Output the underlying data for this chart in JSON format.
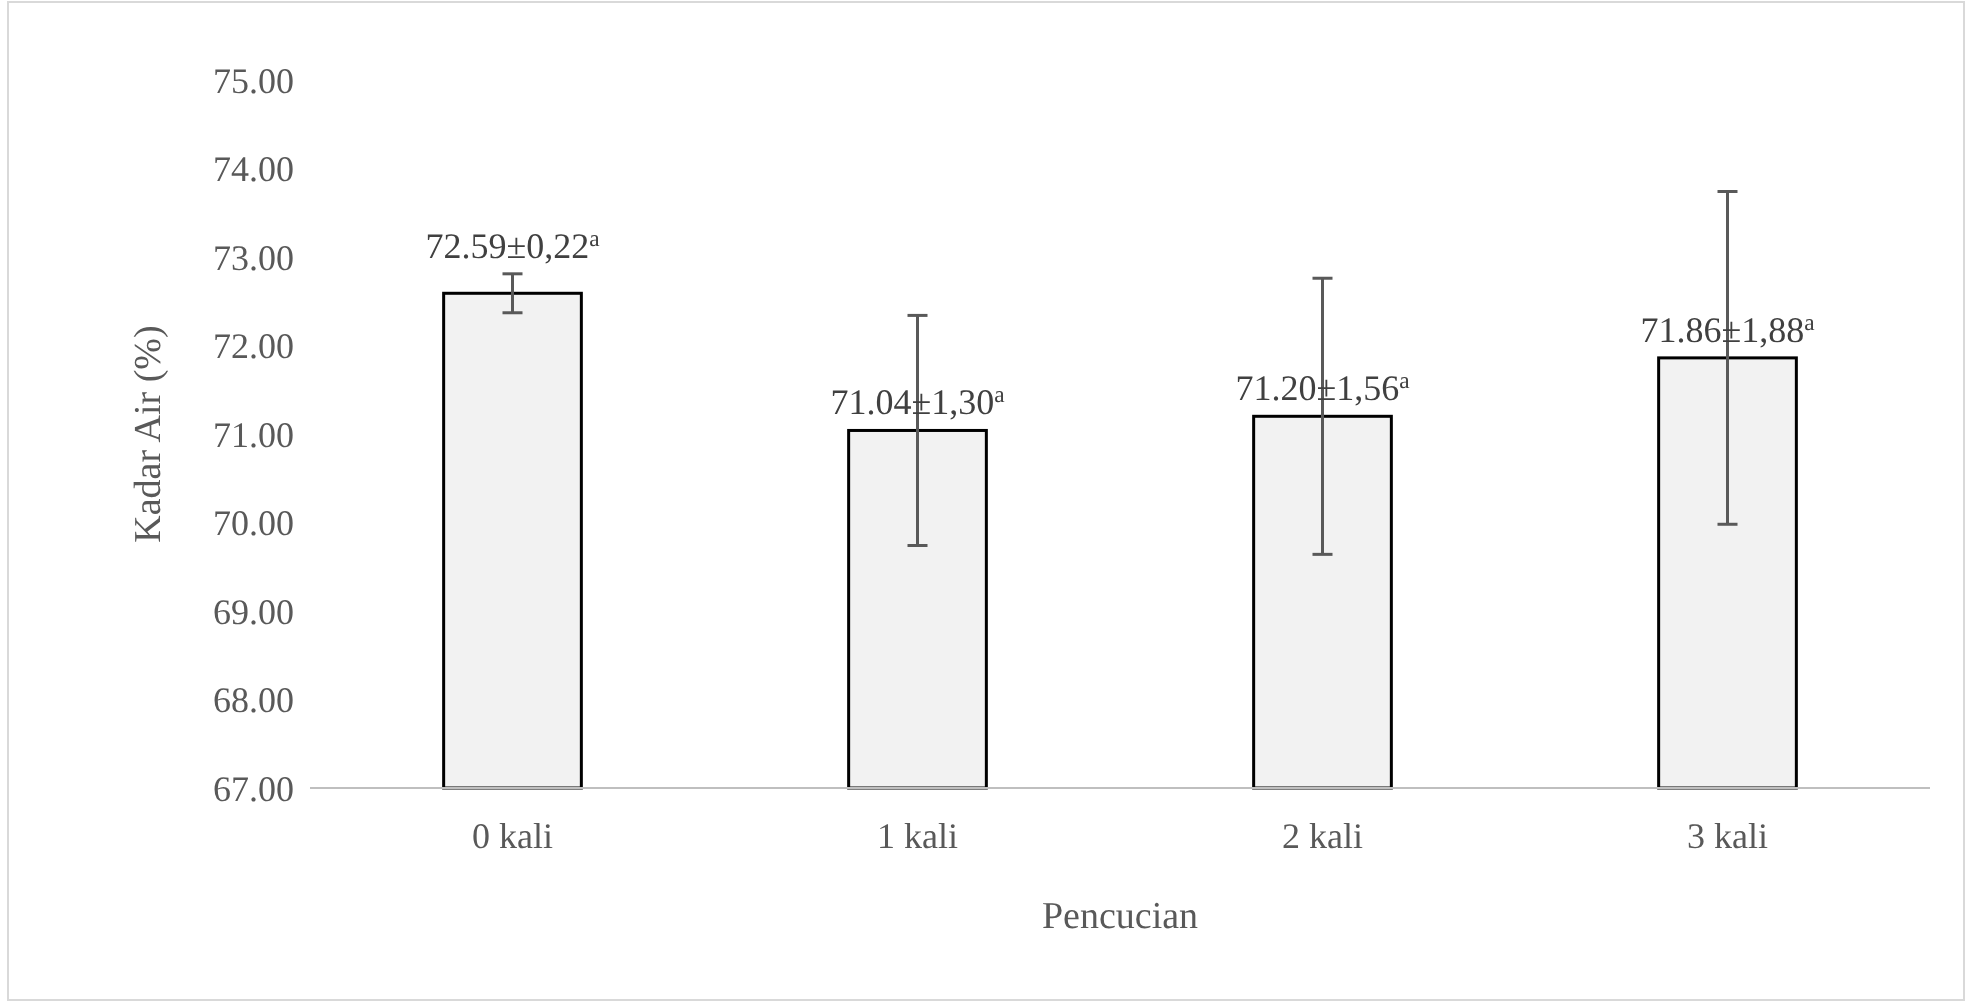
{
  "chart_data": {
    "type": "bar",
    "xlabel": "Pencucian",
    "ylabel": "Kadar Air (%)",
    "categories": [
      "0 kali",
      "1 kali",
      "2 kali",
      "3 kali"
    ],
    "values": [
      72.59,
      71.04,
      71.2,
      71.86
    ],
    "errors": [
      0.22,
      1.3,
      1.56,
      1.88
    ],
    "value_labels": [
      "72.59±0,22$^{a}$",
      "71.04±1,30$^{a}$",
      "71.20±1,56$^{a}$",
      "71.86±1,88$^{a}$"
    ],
    "color": "#f2f2f2",
    "ylim": [
      67,
      75
    ],
    "yticks": [
      {
        "value": 67,
        "label": "67.00"
      },
      {
        "value": 68,
        "label": "68.00"
      },
      {
        "value": 69,
        "label": "69.00"
      },
      {
        "value": 70,
        "label": "70.00"
      },
      {
        "value": 71,
        "label": "71.00"
      },
      {
        "value": 72,
        "label": "72.00"
      },
      {
        "value": 73,
        "label": "73.00"
      },
      {
        "value": 74,
        "label": "74.00"
      },
      {
        "value": 75,
        "label": "75.00"
      }
    ],
    "grid": false
  }
}
